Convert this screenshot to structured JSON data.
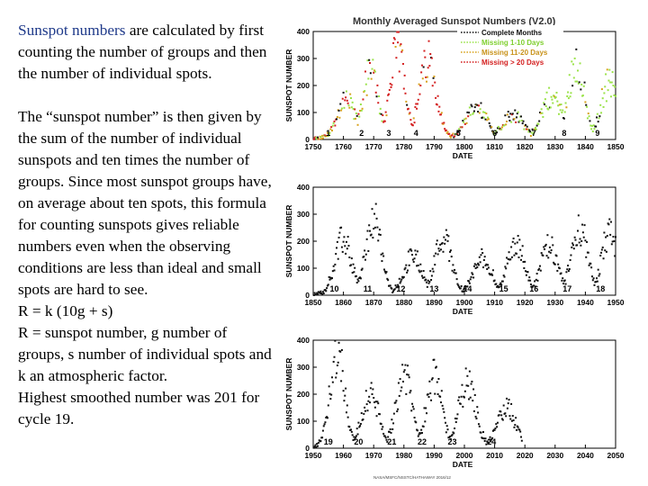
{
  "text": {
    "p1_highlight": "Sunspot numbers",
    "p1_rest": " are calculated by first counting the number of groups and then the number of individual spots.",
    "p2": "The “sunspot number” is then given by the sum of the number of individual sunspots and ten times the number of groups.  Since most sunspot groups have, on average about ten spots, this formula for counting sunspots gives reliable numbers even when the observing conditions are less than ideal and small spots are hard to see.",
    "formula": "R = k (10g + s)",
    "definition": "R = sunspot number, g number of groups, s number of individual spots and k an atmospheric factor.",
    "note": "Highest smoothed number was 201 for cycle 19."
  },
  "colors": {
    "complete": "#111111",
    "missing_1_10": "#9be34a",
    "missing_11_20": "#d8a31e",
    "missing_gt_20": "#d42020",
    "highlight_text": "#1f3a8a"
  },
  "chart_data": [
    {
      "type": "scatter",
      "title": "Monthly Averaged Sunspot Numbers (V2.0)",
      "xlabel": "DATE",
      "ylabel": "SUNSPOT NUMBER",
      "xlim": [
        1750,
        1850
      ],
      "ylim": [
        0,
        400
      ],
      "x_ticks": [
        1750,
        1760,
        1770,
        1780,
        1790,
        1800,
        1810,
        1820,
        1830,
        1840,
        1850
      ],
      "y_ticks": [
        0,
        100,
        200,
        300,
        400
      ],
      "legend": [
        "Complete Months",
        "Missing 1-10 Days",
        "Missing 11-20 Days",
        "Missing > 20 Days"
      ],
      "legend_position": "top-right",
      "cycles": [
        {
          "label": "1",
          "year": 1755
        },
        {
          "label": "2",
          "year": 1766
        },
        {
          "label": "3",
          "year": 1775
        },
        {
          "label": "4",
          "year": 1784
        },
        {
          "label": "5",
          "year": 1798
        },
        {
          "label": "6",
          "year": 1810
        },
        {
          "label": "7",
          "year": 1823
        },
        {
          "label": "8",
          "year": 1833
        },
        {
          "label": "9",
          "year": 1844
        }
      ],
      "peaks": [
        {
          "year": 1761,
          "value": 140,
          "width": 3.0,
          "mix": "early"
        },
        {
          "year": 1769,
          "value": 245,
          "width": 2.6,
          "mix": "early"
        },
        {
          "year": 1778,
          "value": 330,
          "width": 2.5,
          "mix": "red"
        },
        {
          "year": 1788,
          "value": 290,
          "width": 2.8,
          "mix": "red"
        },
        {
          "year": 1804,
          "value": 110,
          "width": 3.5,
          "mix": "mixed"
        },
        {
          "year": 1816,
          "value": 90,
          "width": 3.5,
          "mix": "mixed"
        },
        {
          "year": 1829,
          "value": 150,
          "width": 3.5,
          "mix": "green"
        },
        {
          "year": 1837,
          "value": 280,
          "width": 2.6,
          "mix": "green"
        },
        {
          "year": 1848,
          "value": 210,
          "width": 2.8,
          "mix": "green"
        }
      ]
    },
    {
      "type": "scatter",
      "xlabel": "DATE",
      "ylabel": "SUNSPOT NUMBER",
      "xlim": [
        1850,
        1950
      ],
      "ylim": [
        0,
        400
      ],
      "x_ticks": [
        1850,
        1860,
        1870,
        1880,
        1890,
        1900,
        1910,
        1920,
        1930,
        1940,
        1950
      ],
      "y_ticks": [
        0,
        100,
        200,
        300,
        400
      ],
      "cycles": [
        {
          "label": "10",
          "year": 1857
        },
        {
          "label": "11",
          "year": 1868
        },
        {
          "label": "12",
          "year": 1879
        },
        {
          "label": "13",
          "year": 1890
        },
        {
          "label": "14",
          "year": 1901
        },
        {
          "label": "15",
          "year": 1913
        },
        {
          "label": "16",
          "year": 1923
        },
        {
          "label": "17",
          "year": 1934
        },
        {
          "label": "18",
          "year": 1945
        }
      ],
      "peaks": [
        {
          "year": 1860,
          "value": 200,
          "width": 2.8,
          "mix": "black"
        },
        {
          "year": 1870,
          "value": 270,
          "width": 2.6,
          "mix": "black"
        },
        {
          "year": 1883,
          "value": 140,
          "width": 3.0,
          "mix": "black"
        },
        {
          "year": 1893,
          "value": 210,
          "width": 2.8,
          "mix": "black"
        },
        {
          "year": 1906,
          "value": 130,
          "width": 3.0,
          "mix": "black"
        },
        {
          "year": 1917,
          "value": 190,
          "width": 2.8,
          "mix": "black"
        },
        {
          "year": 1928,
          "value": 175,
          "width": 2.8,
          "mix": "black"
        },
        {
          "year": 1938,
          "value": 250,
          "width": 2.6,
          "mix": "black"
        },
        {
          "year": 1948,
          "value": 230,
          "width": 2.6,
          "mix": "black"
        }
      ]
    },
    {
      "type": "scatter",
      "xlabel": "DATE",
      "ylabel": "SUNSPOT NUMBER",
      "xlim": [
        1950,
        2050
      ],
      "ylim": [
        0,
        400
      ],
      "x_ticks": [
        1950,
        1960,
        1970,
        1980,
        1990,
        2000,
        2010,
        2020,
        2030,
        2040,
        2050
      ],
      "y_ticks": [
        0,
        100,
        200,
        300,
        400
      ],
      "cycles": [
        {
          "label": "19",
          "year": 1955
        },
        {
          "label": "20",
          "year": 1965
        },
        {
          "label": "21",
          "year": 1976
        },
        {
          "label": "22",
          "year": 1986
        },
        {
          "label": "23",
          "year": 1996
        },
        {
          "label": "24",
          "year": 2009
        }
      ],
      "peaks": [
        {
          "year": 1958,
          "value": 355,
          "width": 2.4,
          "mix": "black"
        },
        {
          "year": 1969,
          "value": 190,
          "width": 2.8,
          "mix": "black"
        },
        {
          "year": 1980,
          "value": 270,
          "width": 2.6,
          "mix": "black"
        },
        {
          "year": 1990,
          "value": 260,
          "width": 2.6,
          "mix": "black"
        },
        {
          "year": 2001,
          "value": 240,
          "width": 2.8,
          "mix": "black"
        },
        {
          "year": 2014,
          "value": 145,
          "width": 3.0,
          "mix": "black"
        }
      ],
      "end_year": 2019
    }
  ],
  "footer": "NASA/MSFC/NSSTC/HATHAWAY 2016/12"
}
